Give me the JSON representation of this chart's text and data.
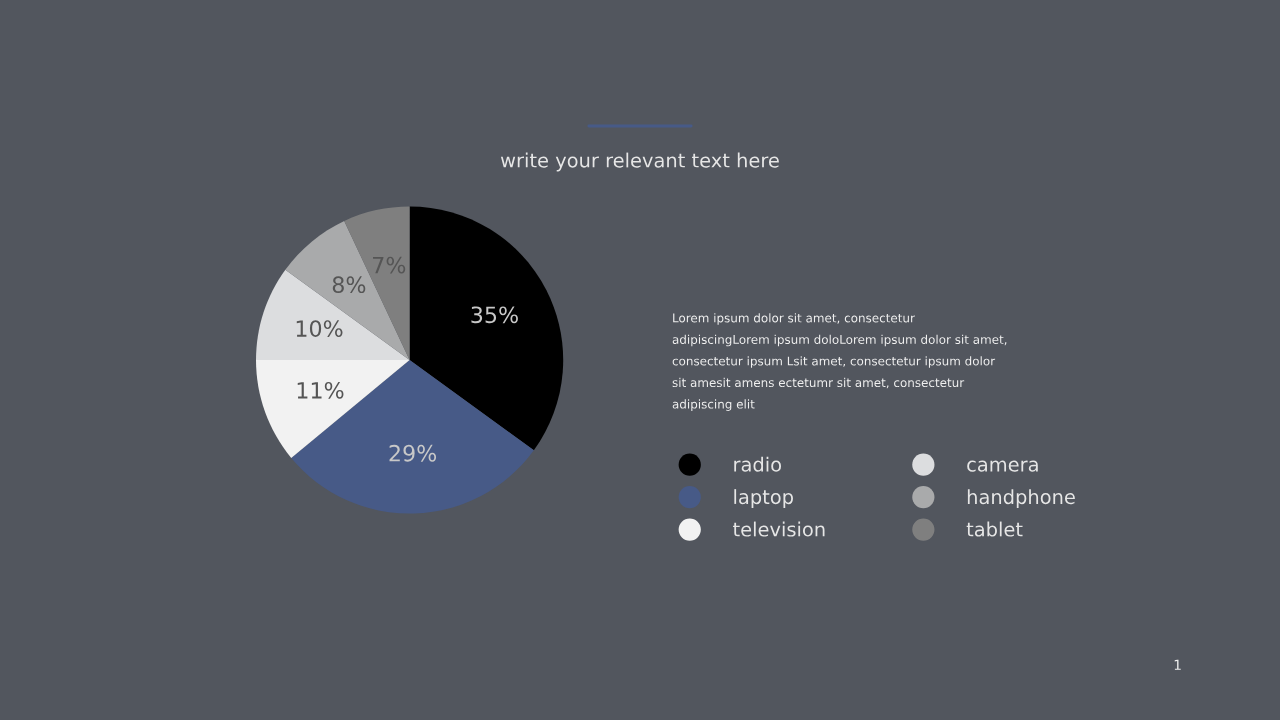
{
  "chart_data": {
    "type": "pie",
    "title": "write your relevant text here",
    "categories": [
      "radio",
      "laptop",
      "television",
      "camera",
      "handphone",
      "tablet"
    ],
    "values": [
      35,
      29,
      11,
      10,
      8,
      7
    ],
    "value_labels": [
      "35%",
      "29%",
      "11%",
      "10%",
      "8%",
      "7%"
    ],
    "colors": [
      "#000000",
      "#475a87",
      "#f2f2f2",
      "#dcdddf",
      "#a9aaab",
      "#7f7f7f"
    ],
    "legend": "right",
    "annotations": [
      "Lorem ipsum dolor sit amet, consectetur\nadipiscingLorem ipsum doloLorem ipsum dolor sit amet,\nconsectetur ipsum Lsit amet, consectetur ipsum dolor\nsit amesit amens ectetumr sit amet, consectetur\nadipiscing elit",
      "1"
    ]
  }
}
